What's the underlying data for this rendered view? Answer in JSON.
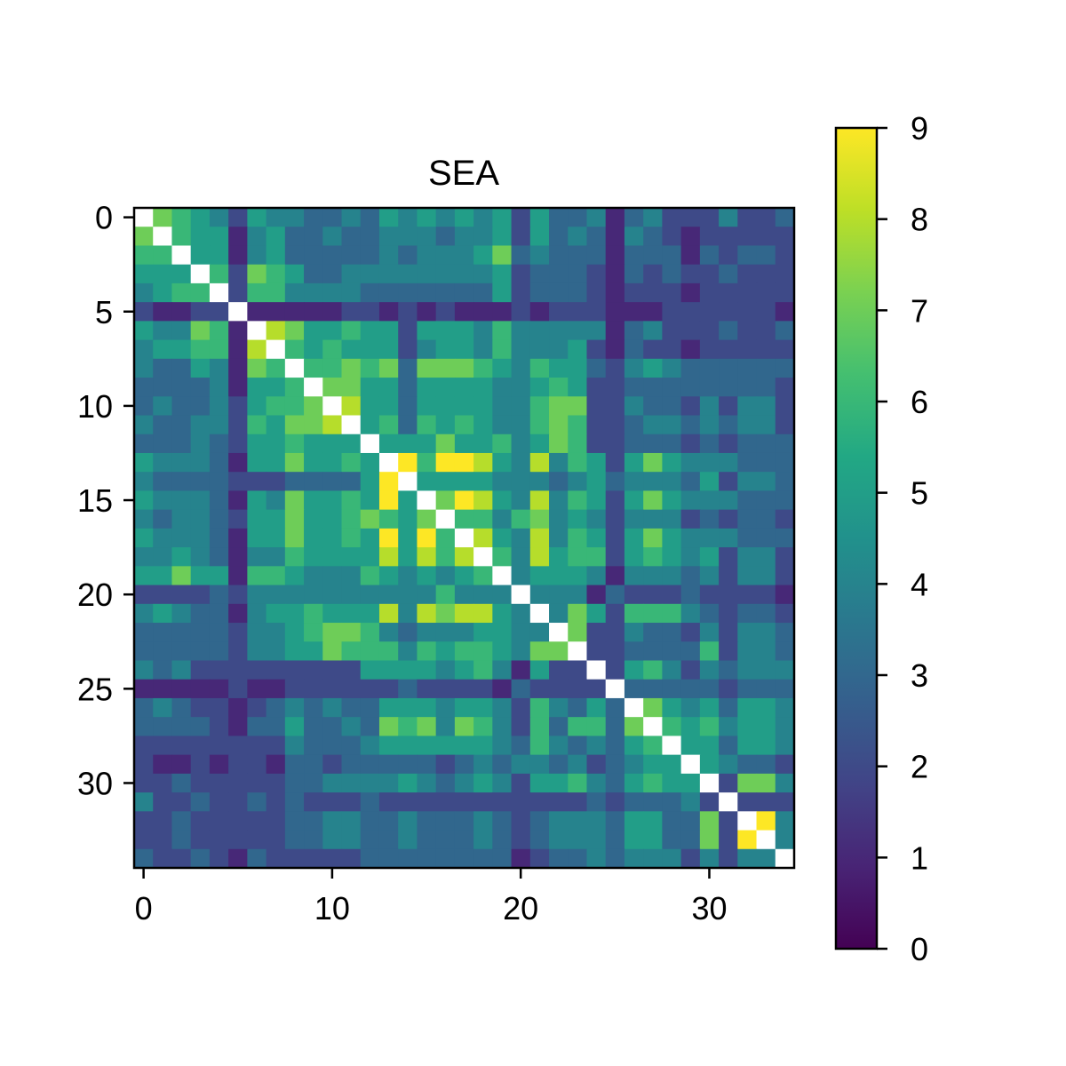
{
  "chart_data": {
    "type": "heatmap",
    "title": "SEA",
    "xlabel": "",
    "ylabel": "",
    "n": 35,
    "x_ticks": [
      0,
      10,
      20,
      30
    ],
    "y_ticks": [
      0,
      5,
      10,
      15,
      20,
      25,
      30
    ],
    "colorbar": {
      "min": 0,
      "max": 9,
      "ticks": [
        0,
        1,
        2,
        3,
        4,
        5,
        6,
        7,
        8,
        9
      ],
      "colormap": "viridis"
    },
    "diagonal": "blank",
    "matrix": [
      [
        null,
        7,
        6,
        5,
        4,
        2,
        5,
        4,
        4,
        3,
        3,
        4,
        3,
        5,
        4,
        5,
        4,
        5,
        4,
        5,
        2,
        5,
        3,
        3,
        4,
        1,
        3,
        4,
        2,
        2,
        2,
        4,
        2,
        2,
        3
      ],
      [
        7,
        null,
        6,
        5,
        5,
        1,
        4,
        5,
        3,
        3,
        4,
        3,
        3,
        4,
        4,
        4,
        3,
        4,
        4,
        5,
        2,
        5,
        3,
        4,
        3,
        1,
        4,
        3,
        2,
        1,
        2,
        2,
        2,
        2,
        2
      ],
      [
        6,
        6,
        null,
        5,
        5,
        1,
        4,
        5,
        3,
        3,
        3,
        3,
        3,
        4,
        3,
        4,
        4,
        4,
        5,
        7,
        3,
        4,
        3,
        3,
        3,
        1,
        3,
        3,
        3,
        1,
        3,
        2,
        3,
        3,
        2
      ],
      [
        5,
        5,
        5,
        null,
        6,
        2,
        7,
        6,
        5,
        3,
        3,
        4,
        4,
        4,
        4,
        4,
        4,
        4,
        4,
        5,
        2,
        3,
        3,
        3,
        2,
        1,
        3,
        2,
        3,
        2,
        2,
        3,
        2,
        2,
        2
      ],
      [
        4,
        5,
        6,
        6,
        null,
        2,
        6,
        6,
        4,
        4,
        4,
        4,
        3,
        3,
        3,
        3,
        3,
        3,
        3,
        5,
        2,
        3,
        3,
        3,
        2,
        1,
        2,
        2,
        2,
        1,
        2,
        2,
        2,
        2,
        2
      ],
      [
        2,
        1,
        1,
        2,
        2,
        null,
        1,
        1,
        1,
        1,
        1,
        2,
        2,
        1,
        2,
        1,
        2,
        1,
        1,
        1,
        2,
        1,
        2,
        2,
        2,
        1,
        1,
        1,
        2,
        2,
        2,
        2,
        2,
        2,
        1
      ],
      [
        5,
        4,
        4,
        7,
        6,
        1,
        null,
        8,
        7,
        5,
        5,
        6,
        5,
        5,
        2,
        5,
        5,
        5,
        4,
        6,
        4,
        4,
        4,
        4,
        4,
        1,
        3,
        4,
        2,
        2,
        2,
        3,
        2,
        2,
        3
      ],
      [
        4,
        5,
        5,
        6,
        6,
        1,
        8,
        null,
        6,
        5,
        6,
        5,
        5,
        5,
        2,
        4,
        5,
        5,
        4,
        6,
        4,
        4,
        4,
        5,
        2,
        1,
        3,
        2,
        2,
        1,
        2,
        2,
        2,
        2,
        2
      ],
      [
        4,
        3,
        3,
        5,
        4,
        1,
        7,
        6,
        null,
        6,
        6,
        7,
        6,
        7,
        3,
        7,
        7,
        7,
        6,
        5,
        4,
        6,
        5,
        5,
        3,
        2,
        4,
        5,
        4,
        3,
        3,
        3,
        3,
        3,
        3
      ],
      [
        3,
        3,
        3,
        3,
        4,
        1,
        5,
        5,
        6,
        null,
        7,
        7,
        5,
        5,
        3,
        5,
        5,
        5,
        5,
        4,
        4,
        5,
        6,
        5,
        2,
        2,
        3,
        3,
        3,
        3,
        3,
        3,
        3,
        3,
        2
      ],
      [
        3,
        4,
        3,
        3,
        4,
        2,
        5,
        6,
        6,
        7,
        null,
        8,
        5,
        5,
        3,
        5,
        5,
        5,
        5,
        4,
        4,
        6,
        7,
        7,
        2,
        2,
        4,
        3,
        3,
        2,
        4,
        2,
        4,
        4,
        2
      ],
      [
        4,
        3,
        3,
        4,
        4,
        2,
        6,
        5,
        7,
        7,
        8,
        null,
        5,
        6,
        3,
        6,
        5,
        6,
        5,
        4,
        4,
        6,
        7,
        6,
        2,
        2,
        3,
        4,
        4,
        3,
        4,
        3,
        4,
        4,
        2
      ],
      [
        3,
        3,
        3,
        4,
        3,
        2,
        5,
        5,
        6,
        5,
        5,
        5,
        null,
        5,
        5,
        5,
        7,
        5,
        5,
        6,
        4,
        5,
        7,
        6,
        2,
        2,
        3,
        3,
        3,
        2,
        3,
        2,
        3,
        3,
        3
      ],
      [
        5,
        4,
        4,
        4,
        3,
        1,
        5,
        5,
        7,
        5,
        5,
        6,
        5,
        null,
        9,
        6,
        9,
        9,
        8,
        5,
        4,
        8,
        4,
        6,
        5,
        2,
        5,
        7,
        5,
        4,
        4,
        4,
        3,
        3,
        3
      ],
      [
        4,
        3,
        3,
        3,
        3,
        2,
        2,
        2,
        3,
        3,
        3,
        3,
        5,
        9,
        null,
        5,
        5,
        5,
        5,
        4,
        4,
        4,
        3,
        4,
        5,
        3,
        4,
        4,
        4,
        3,
        5,
        2,
        4,
        4,
        3
      ],
      [
        5,
        4,
        4,
        4,
        3,
        1,
        5,
        4,
        7,
        5,
        5,
        6,
        5,
        9,
        5,
        null,
        7,
        9,
        8,
        5,
        4,
        8,
        4,
        6,
        5,
        2,
        5,
        7,
        5,
        4,
        4,
        4,
        3,
        3,
        3
      ],
      [
        4,
        3,
        4,
        4,
        3,
        2,
        5,
        5,
        7,
        5,
        5,
        6,
        7,
        6,
        5,
        7,
        null,
        6,
        6,
        4,
        6,
        7,
        4,
        5,
        4,
        2,
        4,
        4,
        4,
        2,
        3,
        2,
        3,
        3,
        2
      ],
      [
        5,
        4,
        4,
        4,
        3,
        1,
        5,
        5,
        7,
        5,
        5,
        6,
        5,
        9,
        5,
        9,
        6,
        null,
        8,
        5,
        4,
        8,
        4,
        6,
        5,
        2,
        5,
        7,
        5,
        4,
        4,
        4,
        3,
        3,
        3
      ],
      [
        4,
        4,
        5,
        4,
        3,
        1,
        4,
        4,
        6,
        5,
        5,
        5,
        5,
        8,
        5,
        8,
        6,
        8,
        null,
        6,
        4,
        8,
        5,
        6,
        6,
        2,
        5,
        6,
        5,
        4,
        5,
        2,
        4,
        4,
        2
      ],
      [
        5,
        5,
        7,
        5,
        5,
        1,
        6,
        6,
        5,
        4,
        4,
        4,
        6,
        5,
        4,
        5,
        4,
        5,
        6,
        null,
        4,
        5,
        5,
        5,
        4,
        1,
        4,
        4,
        4,
        3,
        4,
        2,
        4,
        4,
        2
      ],
      [
        2,
        2,
        2,
        2,
        3,
        2,
        4,
        4,
        4,
        4,
        4,
        4,
        4,
        4,
        4,
        4,
        6,
        4,
        4,
        4,
        null,
        4,
        4,
        4,
        1,
        3,
        2,
        2,
        2,
        3,
        2,
        2,
        2,
        2,
        1
      ],
      [
        4,
        5,
        4,
        3,
        3,
        1,
        4,
        5,
        5,
        6,
        5,
        5,
        5,
        8,
        4,
        8,
        7,
        8,
        8,
        5,
        4,
        null,
        4,
        7,
        5,
        2,
        6,
        6,
        6,
        4,
        3,
        2,
        3,
        3,
        2
      ],
      [
        3,
        3,
        3,
        3,
        3,
        2,
        4,
        4,
        5,
        6,
        7,
        7,
        6,
        4,
        3,
        4,
        4,
        4,
        5,
        5,
        4,
        4,
        null,
        7,
        2,
        2,
        4,
        3,
        3,
        2,
        4,
        2,
        4,
        4,
        3
      ],
      [
        3,
        3,
        3,
        3,
        3,
        2,
        4,
        4,
        5,
        5,
        7,
        6,
        6,
        6,
        4,
        6,
        5,
        6,
        6,
        5,
        4,
        7,
        7,
        null,
        2,
        2,
        3,
        3,
        3,
        3,
        6,
        2,
        4,
        4,
        3
      ],
      [
        4,
        3,
        4,
        2,
        2,
        2,
        2,
        2,
        2,
        2,
        2,
        2,
        5,
        5,
        5,
        5,
        4,
        5,
        6,
        4,
        1,
        5,
        2,
        2,
        null,
        2,
        5,
        6,
        4,
        2,
        4,
        3,
        4,
        4,
        4
      ],
      [
        1,
        1,
        1,
        1,
        1,
        2,
        1,
        1,
        2,
        2,
        2,
        2,
        2,
        2,
        3,
        2,
        2,
        2,
        2,
        1,
        3,
        2,
        2,
        2,
        2,
        null,
        3,
        3,
        3,
        3,
        3,
        2,
        3,
        3,
        3
      ],
      [
        3,
        4,
        3,
        2,
        2,
        1,
        2,
        3,
        4,
        3,
        4,
        3,
        3,
        5,
        5,
        5,
        4,
        5,
        5,
        4,
        2,
        6,
        4,
        3,
        5,
        3,
        null,
        7,
        5,
        4,
        5,
        3,
        5,
        5,
        4
      ],
      [
        3,
        3,
        3,
        3,
        2,
        1,
        3,
        3,
        5,
        3,
        3,
        4,
        3,
        7,
        6,
        7,
        4,
        7,
        6,
        4,
        2,
        6,
        3,
        6,
        6,
        3,
        7,
        null,
        6,
        5,
        6,
        4,
        5,
        5,
        4
      ],
      [
        2,
        2,
        2,
        2,
        2,
        2,
        2,
        2,
        4,
        3,
        3,
        3,
        4,
        5,
        5,
        5,
        5,
        5,
        5,
        4,
        3,
        6,
        4,
        3,
        4,
        3,
        5,
        6,
        null,
        5,
        5,
        3,
        5,
        5,
        4
      ],
      [
        2,
        1,
        1,
        2,
        1,
        2,
        2,
        1,
        3,
        3,
        2,
        3,
        3,
        3,
        3,
        3,
        2,
        3,
        4,
        3,
        4,
        4,
        3,
        4,
        2,
        3,
        4,
        5,
        5,
        null,
        5,
        4,
        3,
        3,
        2
      ],
      [
        2,
        2,
        3,
        2,
        2,
        2,
        2,
        2,
        3,
        3,
        4,
        4,
        4,
        4,
        5,
        4,
        3,
        4,
        5,
        4,
        2,
        5,
        5,
        6,
        4,
        3,
        5,
        6,
        5,
        5,
        null,
        2,
        7,
        7,
        4
      ],
      [
        4,
        2,
        2,
        3,
        2,
        2,
        3,
        2,
        3,
        2,
        2,
        2,
        3,
        2,
        2,
        2,
        2,
        2,
        2,
        2,
        2,
        2,
        2,
        2,
        3,
        2,
        3,
        3,
        3,
        4,
        2,
        null,
        2,
        2,
        2
      ],
      [
        2,
        2,
        3,
        2,
        2,
        2,
        2,
        2,
        3,
        3,
        4,
        4,
        3,
        3,
        4,
        3,
        3,
        3,
        4,
        3,
        2,
        3,
        4,
        4,
        4,
        3,
        5,
        5,
        3,
        3,
        7,
        2,
        null,
        9,
        4
      ],
      [
        2,
        2,
        3,
        2,
        2,
        2,
        2,
        2,
        3,
        3,
        4,
        4,
        3,
        3,
        4,
        3,
        3,
        3,
        4,
        3,
        2,
        3,
        4,
        4,
        4,
        3,
        5,
        5,
        3,
        3,
        7,
        2,
        9,
        null,
        4
      ],
      [
        3,
        2,
        2,
        3,
        2,
        1,
        3,
        2,
        2,
        2,
        2,
        2,
        3,
        3,
        3,
        3,
        3,
        3,
        3,
        3,
        1,
        2,
        3,
        3,
        4,
        3,
        4,
        4,
        4,
        2,
        4,
        2,
        4,
        4,
        null
      ]
    ]
  }
}
